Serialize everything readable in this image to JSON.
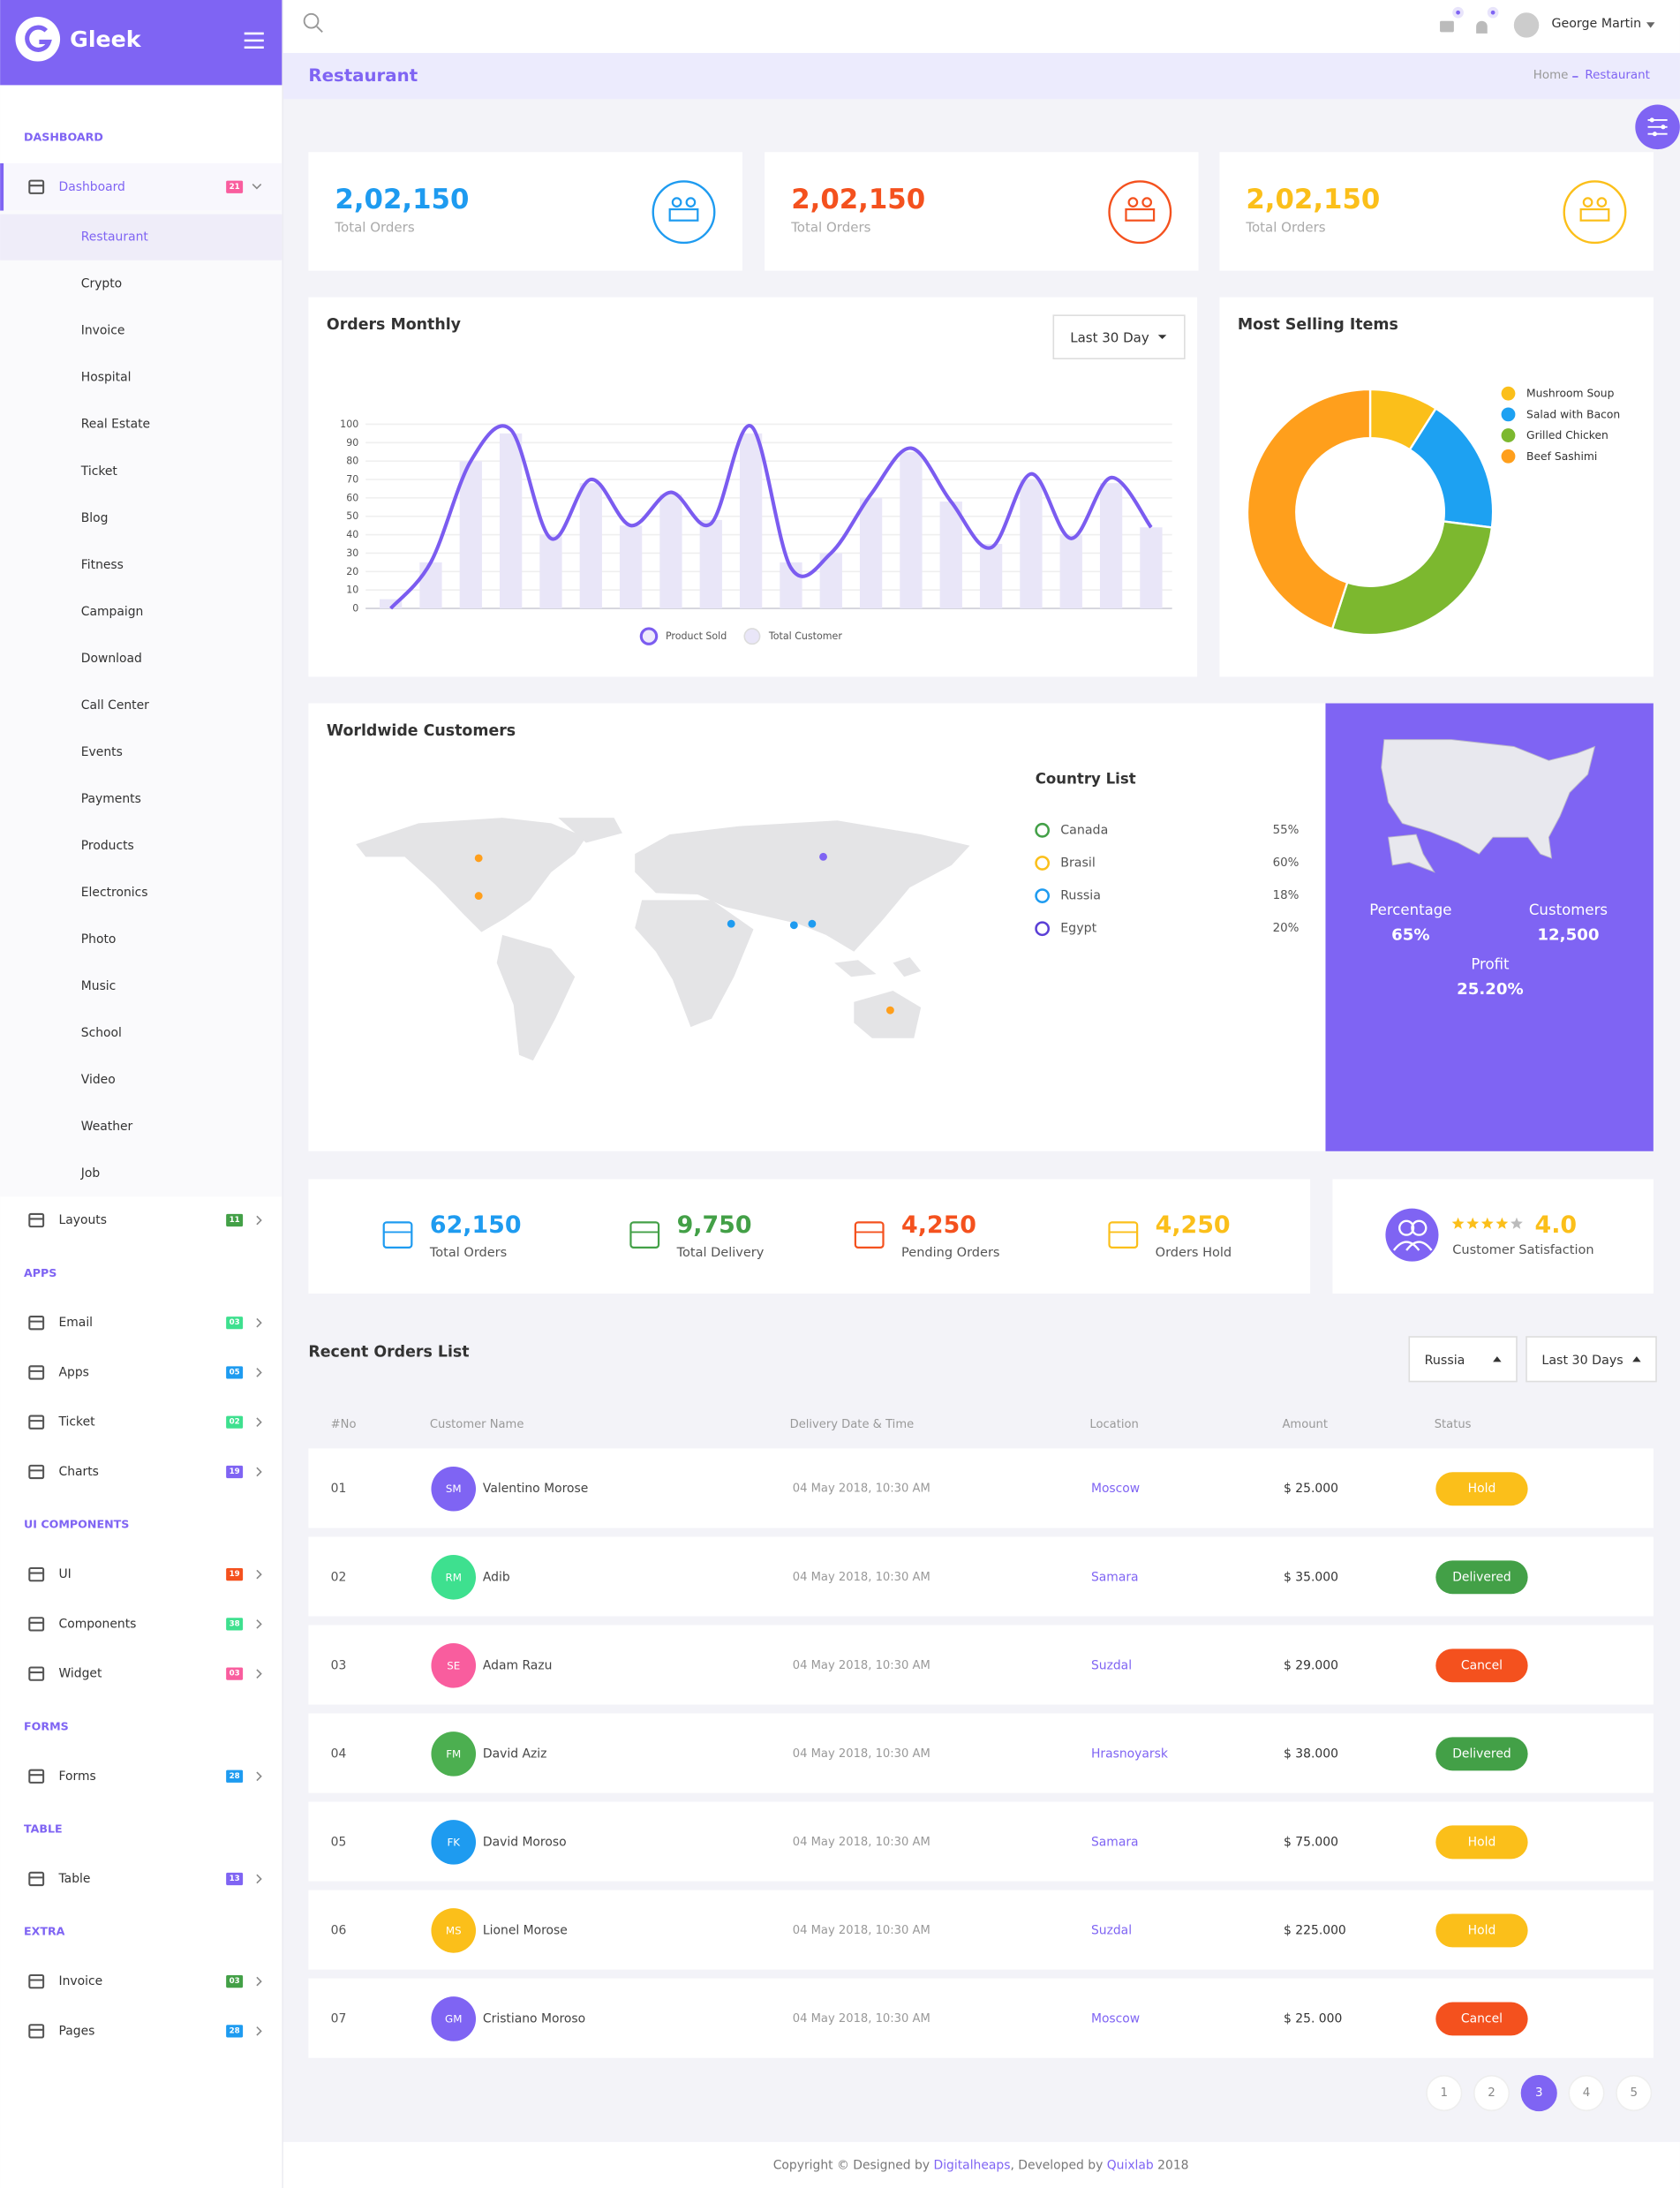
{
  "sidebar": {
    "brand": "Gleek",
    "sections": [
      {
        "title": "DASHBOARD",
        "items": [
          {
            "label": "Dashboard",
            "badge": "21",
            "badge_color": "#f95d9e",
            "children": [
              "Restaurant",
              "Crypto",
              "Invoice",
              "Hospital",
              "Real Estate",
              "Ticket",
              "Blog",
              "Fitness",
              "Campaign",
              "Download",
              "Call Center",
              "Events",
              "Payments",
              "Products",
              "Electronics",
              "Photo",
              "Music",
              "School",
              "Video",
              "Weather",
              "Job"
            ]
          },
          {
            "label": "Layouts",
            "badge": "11",
            "badge_color": "#43a047"
          }
        ]
      },
      {
        "title": "APPS",
        "items": [
          {
            "label": "Email",
            "badge": "03",
            "badge_color": "#3ee08f"
          },
          {
            "label": "Apps",
            "badge": "05",
            "badge_color": "#1e9bf0"
          },
          {
            "label": "Ticket",
            "badge": "02",
            "badge_color": "#3ee08f"
          },
          {
            "label": "Charts",
            "badge": "19",
            "badge_color": "#7f64f3"
          }
        ]
      },
      {
        "title": "UI COMPONENTS",
        "items": [
          {
            "label": "UI",
            "badge": "19",
            "badge_color": "#f4511e"
          },
          {
            "label": "Components",
            "badge": "38",
            "badge_color": "#3ee08f"
          },
          {
            "label": "Widget",
            "badge": "03",
            "badge_color": "#f95d9e"
          }
        ]
      },
      {
        "title": "FORMS",
        "items": [
          {
            "label": "Forms",
            "badge": "28",
            "badge_color": "#1e9bf0"
          }
        ]
      },
      {
        "title": "TABLE",
        "items": [
          {
            "label": "Table",
            "badge": "13",
            "badge_color": "#7f64f3"
          }
        ]
      },
      {
        "title": "EXTRA",
        "items": [
          {
            "label": "Invoice",
            "badge": "03",
            "badge_color": "#43a047"
          },
          {
            "label": "Pages",
            "badge": "28",
            "badge_color": "#1e9bf0"
          }
        ]
      }
    ]
  },
  "topbar": {
    "user": "George Martin"
  },
  "breadcrumb": {
    "page_title": "Restaurant",
    "home": "Home",
    "current": "Restaurant"
  },
  "summary_cards": [
    {
      "value": "2,02,150",
      "label": "Total Orders",
      "color": "#1e9bf0"
    },
    {
      "value": "2,02,150",
      "label": "Total Orders",
      "color": "#f4511e"
    },
    {
      "value": "2,02,150",
      "label": "Total Orders",
      "color": "#fbbf1a"
    }
  ],
  "chart_data": [
    {
      "type": "line",
      "title": "Orders Monthly",
      "period": "Last 30 Day",
      "categories": [
        null,
        null,
        null,
        null,
        null,
        null,
        null,
        null,
        null,
        null,
        null,
        null,
        null,
        null,
        null,
        null,
        null,
        null,
        null,
        null
      ],
      "series": [
        {
          "name": "Product Sold",
          "type": "line",
          "color": "#7b5cf0",
          "values": [
            0,
            25,
            80,
            97,
            38,
            70,
            45,
            63,
            46,
            99,
            22,
            30,
            62,
            87,
            58,
            33,
            73,
            38,
            71,
            44
          ]
        },
        {
          "name": "Total Customer",
          "type": "bar",
          "color": "#e9e6f8",
          "values": [
            5,
            25,
            80,
            95,
            40,
            68,
            45,
            62,
            48,
            95,
            25,
            30,
            60,
            85,
            58,
            35,
            70,
            40,
            68,
            44
          ]
        }
      ],
      "ylim": [
        0,
        100
      ],
      "yticks": [
        0,
        10,
        20,
        30,
        40,
        50,
        60,
        70,
        80,
        90,
        100
      ],
      "grid": true
    },
    {
      "type": "pie",
      "title": "Most Selling Items",
      "categories": [
        "Mushroom Soup",
        "Salad with Bacon",
        "Grilled Chicken",
        "Beef Sashimi"
      ],
      "values": [
        9,
        18,
        28,
        45
      ],
      "colors": [
        "#fbbf1a",
        "#1da1f2",
        "#7cb82f",
        "#ff9f1c"
      ],
      "donut": true
    }
  ],
  "worldwide": {
    "title": "Worldwide Customers",
    "list_title": "Country List",
    "countries": [
      {
        "name": "Canada",
        "share": "55%",
        "color": "#43a047"
      },
      {
        "name": "Brasil",
        "share": "60%",
        "color": "#fbbf1a"
      },
      {
        "name": "Russia",
        "share": "18%",
        "color": "#1e9bf0"
      },
      {
        "name": "Egypt",
        "share": "20%",
        "color": "#5b3fd6"
      }
    ],
    "percentage_label": "Percentage",
    "percentage": "65%",
    "customers_label": "Customers",
    "customers": "12,500",
    "profit_label": "Profit",
    "profit": "25.20%"
  },
  "stats": [
    {
      "value": "62,150",
      "label": "Total Orders",
      "color": "#1e9bf0"
    },
    {
      "value": "9,750",
      "label": "Total Delivery",
      "color": "#43a047"
    },
    {
      "value": "4,250",
      "label": "Pending Orders",
      "color": "#f4511e"
    },
    {
      "value": "4,250",
      "label": "Orders Hold",
      "color": "#fbbf1a"
    }
  ],
  "satisfaction": {
    "rating": "4.0",
    "label": "Customer Satisfaction"
  },
  "orders": {
    "title": "Recent Orders List",
    "filters": [
      "Russia",
      "Last 30 Days"
    ],
    "columns": [
      "#No",
      "Customer Name",
      "Delivery Date & Time",
      "Location",
      "Amount",
      "Status"
    ],
    "rows": [
      {
        "no": "01",
        "initials": "SM",
        "avatar_color": "#7f64f3",
        "name": "Valentino Morose",
        "date": "04 May 2018, 10:30 AM",
        "location": "Moscow",
        "amount": "$ 25.000",
        "status": "Hold",
        "status_color": "#fbbf1a"
      },
      {
        "no": "02",
        "initials": "RM",
        "avatar_color": "#3ee08f",
        "name": "Adib",
        "date": "04 May 2018, 10:30 AM",
        "location": "Samara",
        "amount": "$ 35.000",
        "status": "Delivered",
        "status_color": "#43a047"
      },
      {
        "no": "03",
        "initials": "SE",
        "avatar_color": "#f95d9e",
        "name": "Adam Razu",
        "date": "04 May 2018, 10:30 AM",
        "location": "Suzdal",
        "amount": "$ 29.000",
        "status": "Cancel",
        "status_color": "#f4511e"
      },
      {
        "no": "04",
        "initials": "FM",
        "avatar_color": "#4caf50",
        "name": "David Aziz",
        "date": "04 May 2018, 10:30 AM",
        "location": "Hrasnoyarsk",
        "amount": "$ 38.000",
        "status": "Delivered",
        "status_color": "#43a047"
      },
      {
        "no": "05",
        "initials": "FK",
        "avatar_color": "#1e9bf0",
        "name": "David Moroso",
        "date": "04 May 2018, 10:30 AM",
        "location": "Samara",
        "amount": "$ 75.000",
        "status": "Hold",
        "status_color": "#fbbf1a"
      },
      {
        "no": "06",
        "initials": "MS",
        "avatar_color": "#fbbf1a",
        "name": "Lionel Morose",
        "date": "04 May 2018, 10:30 AM",
        "location": "Suzdal",
        "amount": "$ 225.000",
        "status": "Hold",
        "status_color": "#fbbf1a"
      },
      {
        "no": "07",
        "initials": "GM",
        "avatar_color": "#7f64f3",
        "name": "Cristiano Moroso",
        "date": "04 May 2018, 10:30 AM",
        "location": "Moscow",
        "amount": "$ 25. 000",
        "status": "Cancel",
        "status_color": "#f4511e"
      }
    ]
  },
  "pagination": {
    "pages": [
      "1",
      "2",
      "3",
      "4",
      "5"
    ],
    "active": "3"
  },
  "footer": [
    "Copyright © Designed by ",
    "Digitalheaps",
    ", Developed by ",
    "Quixlab",
    " 2018"
  ]
}
